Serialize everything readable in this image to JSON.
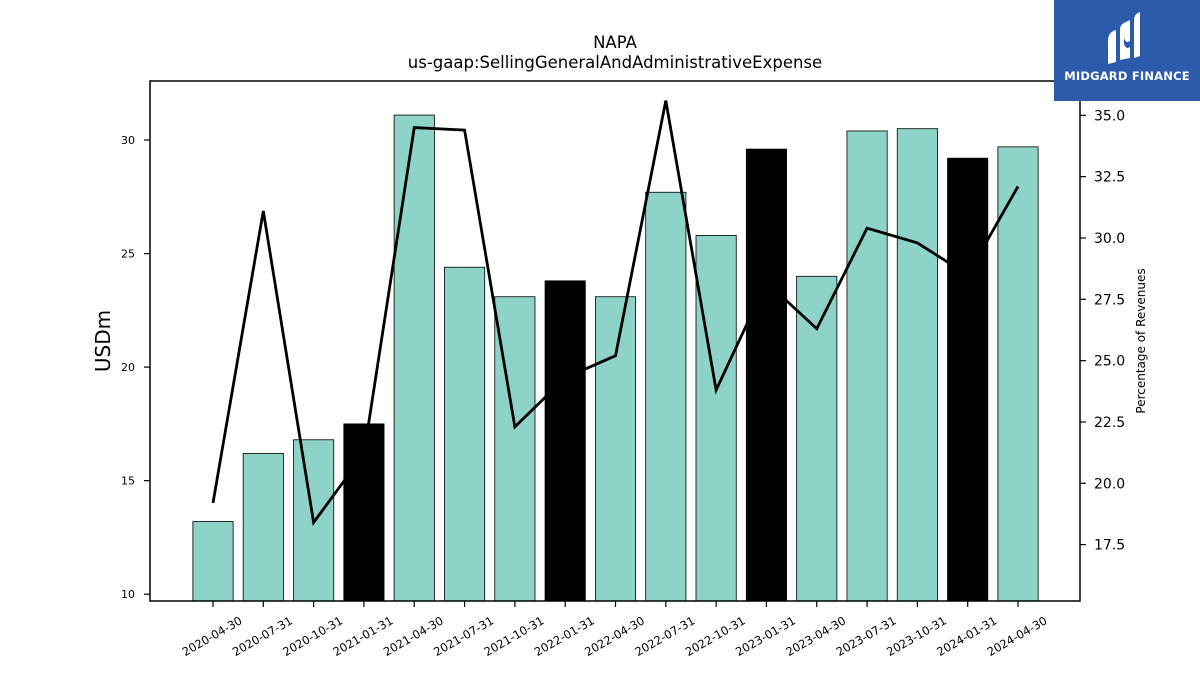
{
  "logo": {
    "text": "MIDGARD FINANCE",
    "icon": "midgard-m-logo-icon",
    "background": "#2d5bab"
  },
  "chart_data": {
    "type": "bar",
    "title": "NAPA",
    "subtitle": "us-gaap:SellingGeneralAndAdministrativeExpense",
    "ylabel": "USDm",
    "y2label": "Percentage of Revenues",
    "ylim": [
      9.7,
      32.6
    ],
    "y2lim": [
      15.2,
      36.4
    ],
    "yticks": [
      10,
      15,
      20,
      25,
      30
    ],
    "y2ticks": [
      17.5,
      20.0,
      22.5,
      25.0,
      27.5,
      30.0,
      32.5,
      35.0
    ],
    "grid": false,
    "categories": [
      "2020-04-30",
      "2020-07-31",
      "2020-10-31",
      "2021-01-31",
      "2021-04-30",
      "2021-07-31",
      "2021-10-31",
      "2022-01-31",
      "2022-04-30",
      "2022-07-31",
      "2022-10-31",
      "2023-01-31",
      "2023-04-30",
      "2023-07-31",
      "2023-10-31",
      "2024-01-31",
      "2024-04-30"
    ],
    "series": [
      {
        "type": "bar",
        "axis": "left",
        "values": [
          13.2,
          16.2,
          16.8,
          17.5,
          31.1,
          24.4,
          23.1,
          23.8,
          23.1,
          27.7,
          25.8,
          29.6,
          24.0,
          30.4,
          30.5,
          29.2,
          29.7
        ],
        "colors": [
          "#8dd3c7",
          "#8dd3c7",
          "#8dd3c7",
          "#000000",
          "#8dd3c7",
          "#8dd3c7",
          "#8dd3c7",
          "#000000",
          "#8dd3c7",
          "#8dd3c7",
          "#8dd3c7",
          "#000000",
          "#8dd3c7",
          "#8dd3c7",
          "#8dd3c7",
          "#000000",
          "#8dd3c7"
        ]
      },
      {
        "type": "line",
        "axis": "right",
        "color": "#000000",
        "values": [
          19.2,
          31.1,
          18.4,
          21.2,
          34.5,
          34.4,
          22.3,
          24.3,
          25.2,
          35.6,
          23.8,
          28.2,
          26.3,
          30.4,
          29.8,
          28.5,
          32.1
        ]
      }
    ]
  }
}
